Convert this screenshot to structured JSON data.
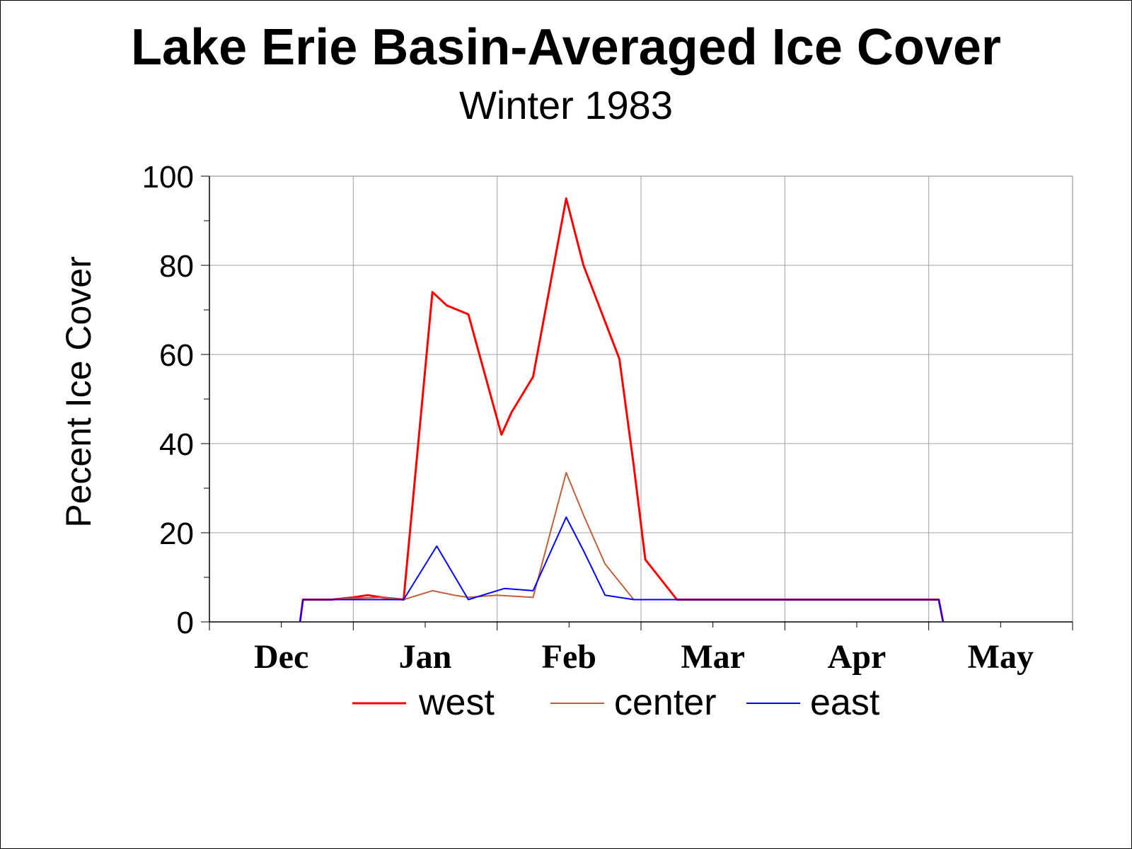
{
  "chart_data": {
    "type": "line",
    "title": "Lake Erie Basin-Averaged Ice Cover",
    "subtitle": "Winter 1983",
    "ylabel": "Pecent Ice Cover",
    "xlabel": "",
    "ylim": [
      0,
      100
    ],
    "yticks": [
      "0",
      "20",
      "40",
      "60",
      "80",
      "100"
    ],
    "xlim": [
      0,
      6
    ],
    "month_labels": [
      {
        "label": "Dec",
        "x": 0.5
      },
      {
        "label": "Jan",
        "x": 1.5
      },
      {
        "label": "Feb",
        "x": 2.5
      },
      {
        "label": "Mar",
        "x": 3.5
      },
      {
        "label": "Apr",
        "x": 4.5
      },
      {
        "label": "May",
        "x": 5.5
      }
    ],
    "grid": true,
    "legend_position": "bottom",
    "series": [
      {
        "name": "west",
        "color": "#ff0000",
        "points": [
          [
            0.63,
            0
          ],
          [
            0.65,
            5
          ],
          [
            0.85,
            5
          ],
          [
            1.0,
            5.5
          ],
          [
            1.1,
            6
          ],
          [
            1.2,
            5.5
          ],
          [
            1.35,
            5
          ],
          [
            1.55,
            74
          ],
          [
            1.65,
            71
          ],
          [
            1.8,
            69
          ],
          [
            2.03,
            42
          ],
          [
            2.1,
            47
          ],
          [
            2.25,
            55
          ],
          [
            2.48,
            95
          ],
          [
            2.6,
            80
          ],
          [
            2.85,
            59
          ],
          [
            2.95,
            35
          ],
          [
            3.03,
            14
          ],
          [
            3.25,
            5
          ],
          [
            3.5,
            5
          ],
          [
            4.0,
            5
          ],
          [
            4.5,
            5
          ],
          [
            5.07,
            5
          ],
          [
            5.1,
            0
          ]
        ]
      },
      {
        "name": "center",
        "color": "#c0603a",
        "points": [
          [
            0.63,
            0
          ],
          [
            0.65,
            5
          ],
          [
            0.85,
            5
          ],
          [
            1.0,
            5.3
          ],
          [
            1.2,
            5.5
          ],
          [
            1.35,
            5
          ],
          [
            1.55,
            7
          ],
          [
            1.7,
            6
          ],
          [
            1.8,
            5.5
          ],
          [
            2.0,
            6
          ],
          [
            2.25,
            5.5
          ],
          [
            2.48,
            33.5
          ],
          [
            2.6,
            24
          ],
          [
            2.75,
            13
          ],
          [
            2.95,
            5
          ],
          [
            3.25,
            5
          ],
          [
            3.5,
            5
          ],
          [
            4.0,
            5
          ],
          [
            4.5,
            5
          ],
          [
            5.07,
            5
          ],
          [
            5.1,
            0
          ]
        ]
      },
      {
        "name": "east",
        "color": "#0000ff",
        "points": [
          [
            0.63,
            0
          ],
          [
            0.65,
            5
          ],
          [
            0.85,
            5
          ],
          [
            1.0,
            5
          ],
          [
            1.35,
            5
          ],
          [
            1.58,
            17
          ],
          [
            1.8,
            5
          ],
          [
            1.9,
            6
          ],
          [
            2.05,
            7.5
          ],
          [
            2.25,
            7
          ],
          [
            2.48,
            23.5
          ],
          [
            2.6,
            16
          ],
          [
            2.75,
            6
          ],
          [
            2.95,
            5
          ],
          [
            3.25,
            5
          ],
          [
            3.5,
            5
          ],
          [
            4.0,
            5
          ],
          [
            4.5,
            5
          ],
          [
            5.07,
            5
          ],
          [
            5.1,
            0
          ]
        ]
      }
    ]
  }
}
